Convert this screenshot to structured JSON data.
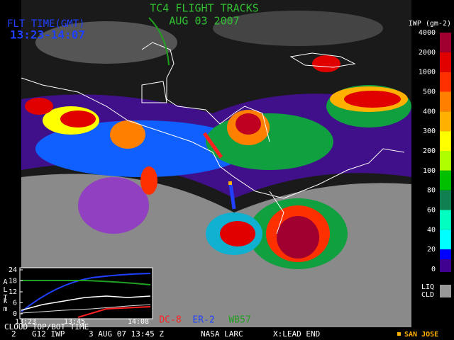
{
  "header": {
    "title": "TC4 FLIGHT TRACKS",
    "date": "AUG 03 2007",
    "time_label": "FLT TIME(GMT)",
    "time_range": "13:23-14:07"
  },
  "colorbar": {
    "title": "IWP (gm-2)",
    "levels": [
      {
        "value": 4000,
        "color": "#a00030"
      },
      {
        "value": 2000,
        "color": "#e00000"
      },
      {
        "value": 1000,
        "color": "#ff3000"
      },
      {
        "value": 500,
        "color": "#ff8000"
      },
      {
        "value": 400,
        "color": "#ffb000"
      },
      {
        "value": 300,
        "color": "#ffff00"
      },
      {
        "value": 200,
        "color": "#b0ff00"
      },
      {
        "value": 100,
        "color": "#00c000"
      },
      {
        "value": 80,
        "color": "#108050"
      },
      {
        "value": 60,
        "color": "#00ffc0"
      },
      {
        "value": 40,
        "color": "#00ffff"
      },
      {
        "value": 20,
        "color": "#0000ff"
      },
      {
        "value": 0,
        "color": "#400090"
      }
    ],
    "liquid_label": "LIQ",
    "cloud_label": "CLD",
    "liquid_color": "#999999"
  },
  "inset": {
    "ylabel_top": "ALT",
    "ylabel_bottom": "km",
    "ylim": [
      0,
      24
    ],
    "yticks": [
      0,
      6,
      12,
      18,
      24
    ],
    "xticks": [
      "13:23",
      "13:45",
      "14:08"
    ],
    "caption": "CLOUD TOP/BOT TIME"
  },
  "aircraft": [
    {
      "name": "DC-8",
      "color": "#ff2020"
    },
    {
      "name": "ER-2",
      "color": "#2040ff"
    },
    {
      "name": "WB57",
      "color": "#20a020"
    }
  ],
  "footer": {
    "items": [
      "2",
      "G12 IWP",
      "3 AUG 07 13:45 Z",
      "NASA LARC",
      "X:LEAD END"
    ],
    "location": "SAN JOSE"
  }
}
